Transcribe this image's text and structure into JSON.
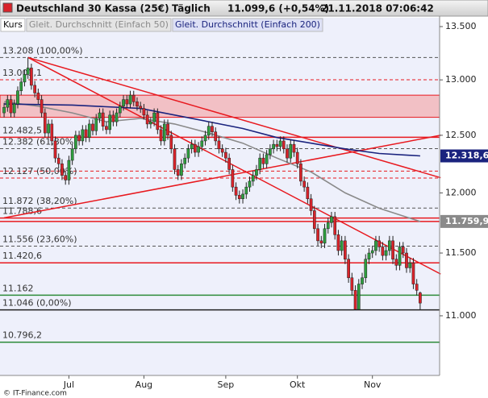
{
  "chart_data": {
    "type": "candlestick",
    "title": "Deutschland 30 Kassa (25€)",
    "period": "Täglich",
    "last": "11.099,6 (+0,54%)",
    "timestamp": "21.11.2018 07:06:42",
    "source": "© IT-Finance.com",
    "log_scale": true,
    "ylim": [
      10545,
      13585
    ],
    "yticks": [
      {
        "value": 13500,
        "label": "13.500"
      },
      {
        "value": 13000,
        "label": "13.000"
      },
      {
        "value": 12500,
        "label": "12.500"
      },
      {
        "value": 12000,
        "label": "12.000"
      },
      {
        "value": 11500,
        "label": "11.500"
      },
      {
        "value": 11000,
        "label": "11.000"
      }
    ],
    "xlim": [
      -1.2,
      127.7
    ],
    "xticks": [
      {
        "value": 19,
        "label": "Jul"
      },
      {
        "value": 41,
        "label": "Aug"
      },
      {
        "value": 65,
        "label": "Sep"
      },
      {
        "value": 86,
        "label": "Okt"
      },
      {
        "value": 108,
        "label": "Nov"
      }
    ],
    "candles": {
      "name": "Kurs",
      "up_color": "#2e9e3e",
      "down_color": "#d9232a",
      "open": [
        12700,
        12750,
        12820,
        12700,
        12780,
        12900,
        12980,
        13050,
        13110,
        12950,
        12880,
        12820,
        12700,
        12520,
        12600,
        12450,
        12300,
        12250,
        12150,
        12110,
        12280,
        12380,
        12500,
        12450,
        12550,
        12480,
        12600,
        12540,
        12650,
        12700,
        12580,
        12550,
        12680,
        12620,
        12700,
        12760,
        12820,
        12780,
        12860,
        12800,
        12760,
        12740,
        12680,
        12600,
        12620,
        12700,
        12550,
        12450,
        12600,
        12500,
        12380,
        12200,
        12150,
        12250,
        12300,
        12380,
        12420,
        12350,
        12400,
        12450,
        12500,
        12580,
        12530,
        12450,
        12380,
        12350,
        12300,
        12200,
        12050,
        11980,
        11950,
        11990,
        12050,
        12100,
        12150,
        12200,
        12300,
        12250,
        12330,
        12380,
        12420,
        12400,
        12450,
        12380,
        12300,
        12420,
        12350,
        12250,
        12100,
        12050,
        11950,
        11850,
        11700,
        11600,
        11580,
        11700,
        11750,
        11800,
        11650,
        11520,
        11600,
        11450,
        11300,
        11200,
        11050,
        11250,
        11300,
        11450,
        11500,
        11520,
        11600,
        11550,
        11480,
        11520,
        11600,
        11450,
        11400,
        11550,
        11500,
        11380,
        11420,
        11250,
        11180
      ],
      "high": [
        12790,
        12860,
        12860,
        12820,
        12940,
        13020,
        13090,
        13208,
        13150,
        12990,
        12920,
        12860,
        12740,
        12640,
        12640,
        12490,
        12340,
        12290,
        12190,
        12320,
        12420,
        12540,
        12540,
        12590,
        12590,
        12640,
        12640,
        12690,
        12740,
        12740,
        12620,
        12720,
        12720,
        12740,
        12800,
        12860,
        12860,
        12900,
        12900,
        12840,
        12800,
        12780,
        12720,
        12660,
        12740,
        12740,
        12590,
        12640,
        12640,
        12540,
        12420,
        12240,
        12290,
        12340,
        12420,
        12460,
        12460,
        12440,
        12490,
        12540,
        12620,
        12620,
        12570,
        12490,
        12420,
        12390,
        12340,
        12240,
        12090,
        12020,
        12030,
        12090,
        12140,
        12190,
        12240,
        12340,
        12340,
        12370,
        12420,
        12460,
        12460,
        12490,
        12490,
        12420,
        12460,
        12460,
        12390,
        12290,
        12140,
        12090,
        11990,
        11890,
        11740,
        11640,
        11740,
        11790,
        11840,
        11840,
        11690,
        11640,
        11640,
        11490,
        11340,
        11240,
        11290,
        11340,
        11490,
        11540,
        11560,
        11640,
        11640,
        11590,
        11560,
        11640,
        11640,
        11490,
        11590,
        11590,
        11540,
        11460,
        11460,
        11290,
        11190
      ],
      "low": [
        12660,
        12710,
        12660,
        12660,
        12740,
        12860,
        12940,
        13010,
        12910,
        12840,
        12780,
        12660,
        12480,
        12480,
        12410,
        12260,
        12210,
        12110,
        12070,
        12070,
        12240,
        12340,
        12410,
        12410,
        12440,
        12440,
        12500,
        12500,
        12610,
        12540,
        12510,
        12510,
        12580,
        12580,
        12660,
        12720,
        12740,
        12740,
        12760,
        12720,
        12700,
        12640,
        12560,
        12560,
        12580,
        12510,
        12410,
        12410,
        12460,
        12340,
        12160,
        12110,
        12110,
        12210,
        12260,
        12340,
        12310,
        12310,
        12360,
        12410,
        12460,
        12490,
        12410,
        12340,
        12310,
        12260,
        12160,
        12010,
        11940,
        11910,
        11910,
        11950,
        12010,
        12060,
        12110,
        12160,
        12210,
        12210,
        12290,
        12340,
        12360,
        12360,
        12340,
        12260,
        12260,
        12310,
        12210,
        12060,
        12010,
        11910,
        11810,
        11660,
        11560,
        11540,
        11540,
        11660,
        11710,
        11610,
        11480,
        11480,
        11410,
        11260,
        11160,
        11046,
        11060,
        11210,
        11260,
        11410,
        11460,
        11480,
        11510,
        11440,
        11440,
        11480,
        11410,
        11360,
        11360,
        11460,
        11340,
        11340,
        11210,
        11160,
        11050
      ],
      "close": [
        12750,
        12820,
        12700,
        12780,
        12900,
        12980,
        13050,
        13110,
        12950,
        12880,
        12820,
        12700,
        12520,
        12600,
        12450,
        12300,
        12250,
        12150,
        12110,
        12280,
        12380,
        12500,
        12450,
        12550,
        12480,
        12600,
        12540,
        12650,
        12700,
        12580,
        12550,
        12680,
        12620,
        12700,
        12760,
        12820,
        12780,
        12860,
        12800,
        12760,
        12740,
        12680,
        12600,
        12620,
        12700,
        12550,
        12450,
        12600,
        12500,
        12380,
        12200,
        12150,
        12250,
        12300,
        12380,
        12420,
        12350,
        12400,
        12450,
        12500,
        12580,
        12530,
        12450,
        12380,
        12350,
        12300,
        12200,
        12050,
        11980,
        11950,
        11990,
        12050,
        12100,
        12150,
        12200,
        12300,
        12250,
        12330,
        12380,
        12420,
        12400,
        12450,
        12380,
        12300,
        12420,
        12350,
        12250,
        12100,
        12050,
        11950,
        11850,
        11700,
        11600,
        11580,
        11700,
        11750,
        11800,
        11650,
        11520,
        11600,
        11450,
        11300,
        11200,
        11050,
        11250,
        11300,
        11450,
        11500,
        11520,
        11600,
        11550,
        11480,
        11520,
        11600,
        11450,
        11400,
        11550,
        11500,
        11380,
        11420,
        11250,
        11200,
        11099.6
      ]
    },
    "series": [
      {
        "name": "Gleit. Durchschnitt (Einfach 50)",
        "color": "#8a8a8a",
        "x": [
          0,
          10,
          20,
          30,
          40,
          50,
          60,
          70,
          80,
          90,
          100,
          110,
          122
        ],
        "values": [
          12800,
          12760,
          12700,
          12620,
          12650,
          12600,
          12520,
          12430,
          12300,
          12180,
          12000,
          11870,
          11759.9
        ],
        "value_labels": [
          null,
          null,
          null,
          null,
          null,
          null,
          null,
          null,
          null,
          null,
          null,
          null,
          "11.759,9"
        ]
      },
      {
        "name": "Gleit. Durchschnitt (Einfach 200)",
        "color": "#1a237e",
        "x": [
          0,
          20,
          40,
          60,
          70,
          80,
          90,
          100,
          110,
          122
        ],
        "values": [
          12780,
          12770,
          12740,
          12620,
          12560,
          12480,
          12430,
          12380,
          12340,
          12318.6
        ],
        "value_labels": [
          null,
          null,
          null,
          null,
          null,
          null,
          null,
          null,
          null,
          "12.318,6"
        ]
      }
    ],
    "zones": [
      {
        "from": 12660,
        "to": 12860,
        "color": "#f2b4b8"
      }
    ],
    "levels": [
      {
        "value": 13208,
        "label": "13.208 (100,00%)",
        "color": "#555555",
        "dash": true
      },
      {
        "value": 13001.1,
        "label": "13.001,1",
        "color": "#e8191f",
        "dash": true
      },
      {
        "value": 12482.5,
        "label": "12.482,5",
        "color": "#e8191f",
        "dash": false
      },
      {
        "value": 12382,
        "label": "12.382 (61,80%)",
        "color": "#555555",
        "dash": true
      },
      {
        "value": 12187,
        "color": "#e8191f",
        "dash": true
      },
      {
        "value": 12127,
        "label": "12.127 (50,00%)",
        "color": "#e8191f",
        "dash": true
      },
      {
        "value": 11872,
        "label": "11.872 (38,20%)",
        "color": "#555555",
        "dash": true
      },
      {
        "value": 11788.6,
        "label": "11.788,6",
        "color": "#e8191f",
        "dash": false
      },
      {
        "value": 11760,
        "color": "#e8191f",
        "dash": false
      },
      {
        "value": 11556,
        "label": "11.556 (23,60%)",
        "color": "#555555",
        "dash": true
      },
      {
        "value": 11420.6,
        "label": "11.420,6",
        "color": "#e8191f",
        "dash": false
      },
      {
        "value": 11162,
        "label": "11.162",
        "color": "#2e8b3a",
        "dash": false
      },
      {
        "value": 11046,
        "label": "11.046 (0,00%)",
        "color": "#222222",
        "dash": false
      },
      {
        "value": 10796.2,
        "label": "10.796,2",
        "color": "#2e8b3a",
        "dash": false
      }
    ],
    "trendlines": [
      {
        "x": [
          7,
          128
        ],
        "values": [
          13208,
          12130
        ],
        "color": "#e8191f"
      },
      {
        "x": [
          7,
          128
        ],
        "values": [
          13208,
          11330
        ],
        "color": "#e8191f"
      },
      {
        "x": [
          0,
          128
        ],
        "values": [
          11790,
          12500
        ],
        "color": "#e8191f"
      }
    ]
  }
}
